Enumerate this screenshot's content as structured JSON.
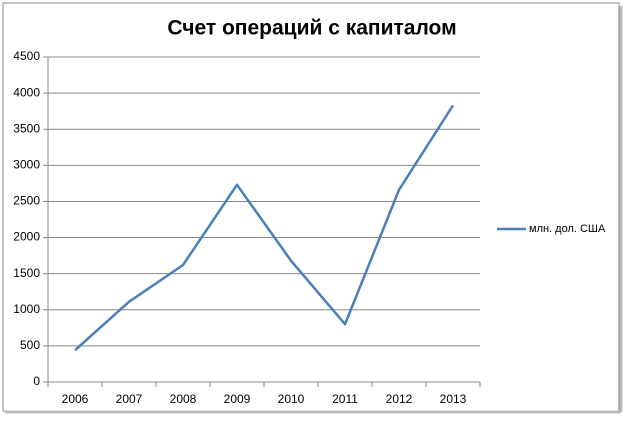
{
  "chart_data": {
    "type": "line",
    "title": "Счет операций с капиталом",
    "categories": [
      "2006",
      "2007",
      "2008",
      "2009",
      "2010",
      "2011",
      "2012",
      "2013"
    ],
    "series": [
      {
        "name": "млн. дол. США",
        "color": "#4a7ebb",
        "values": [
          440,
          1110,
          1620,
          2730,
          1680,
          800,
          2660,
          3830
        ]
      }
    ],
    "ylim": [
      0,
      4500
    ],
    "yticks": [
      0,
      500,
      1000,
      1500,
      2000,
      2500,
      3000,
      3500,
      4000,
      4500
    ],
    "grid": true,
    "legend": "right"
  }
}
